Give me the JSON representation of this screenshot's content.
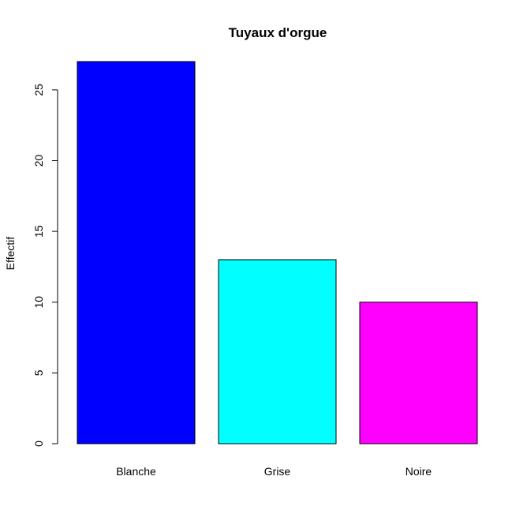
{
  "chart_data": {
    "type": "bar",
    "title": "Tuyaux d'orgue",
    "xlabel": "",
    "ylabel": "Effectif",
    "categories": [
      "Blanche",
      "Grise",
      "Noire"
    ],
    "values": [
      27,
      13,
      10
    ],
    "colors": [
      "#0000ff",
      "#00ffff",
      "#ff00ff"
    ],
    "ylim": [
      0,
      27
    ],
    "yticks": [
      0,
      5,
      10,
      15,
      20,
      25
    ],
    "grid": false,
    "legend": "none"
  }
}
